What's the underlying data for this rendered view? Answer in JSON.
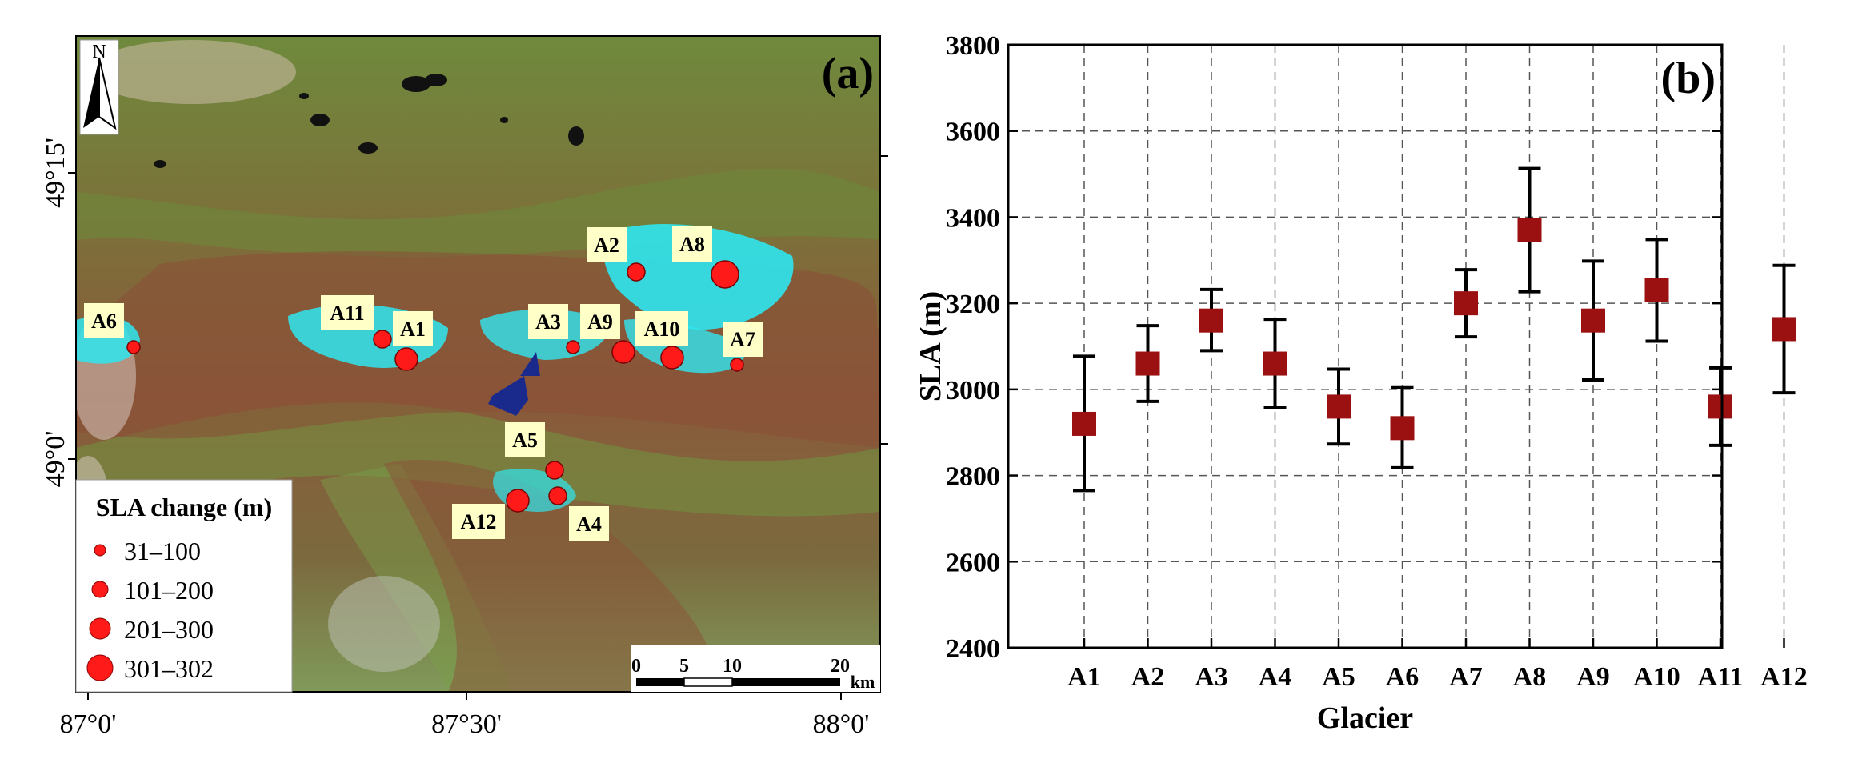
{
  "panel_a": {
    "label": "(a)",
    "north_label": "N",
    "lat_ticks": [
      "49°15'",
      "49°0'"
    ],
    "lon_ticks": [
      "87°0'",
      "87°30'",
      "88°0'"
    ],
    "legend": {
      "title": "SLA change (m)",
      "items": [
        "31–100",
        "101–200",
        "201–300",
        "301–302"
      ]
    },
    "scalebar": {
      "ticks": [
        "0",
        "5",
        "10",
        "20"
      ],
      "unit": "km"
    },
    "glaciers": [
      {
        "name": "A1",
        "class": 3
      },
      {
        "name": "A2",
        "class": 2
      },
      {
        "name": "A3",
        "class": 1
      },
      {
        "name": "A4",
        "class": 2
      },
      {
        "name": "A5",
        "class": 2
      },
      {
        "name": "A6",
        "class": 1
      },
      {
        "name": "A7",
        "class": 1
      },
      {
        "name": "A8",
        "class": 4
      },
      {
        "name": "A9",
        "class": 3
      },
      {
        "name": "A10",
        "class": 3
      },
      {
        "name": "A11",
        "class": 2
      },
      {
        "name": "A12",
        "class": 3
      }
    ],
    "colors": {
      "marker": "#ff1a1a",
      "label_bg": "#ffffc8",
      "glacier_ice": "#2fe6f0",
      "lake": "#1a2a8c"
    }
  },
  "chart_data": {
    "type": "scatter",
    "panel_label": "(b)",
    "categories": [
      "A1",
      "A2",
      "A3",
      "A4",
      "A5",
      "A6",
      "A7",
      "A8",
      "A9",
      "A10",
      "A11",
      "A12"
    ],
    "values": [
      2920,
      3060,
      3160,
      3060,
      2960,
      2910,
      3200,
      3370,
      3160,
      3230,
      2960,
      3140
    ],
    "err_low": [
      2765,
      2972,
      3090,
      2957,
      2873,
      2818,
      3122,
      3227,
      3022,
      3112,
      2870,
      2992
    ],
    "err_high": [
      3077,
      3148,
      3232,
      3163,
      3047,
      3004,
      3278,
      3513,
      3298,
      3348,
      3050,
      3288
    ],
    "ylim": [
      2400,
      3800
    ],
    "yticks": [
      "2400",
      "2600",
      "2800",
      "3000",
      "3200",
      "3400",
      "3600",
      "3800"
    ],
    "xlabel": "Glacier",
    "ylabel": "SLA (m)",
    "grid": true,
    "marker_color": "#9b1010"
  }
}
